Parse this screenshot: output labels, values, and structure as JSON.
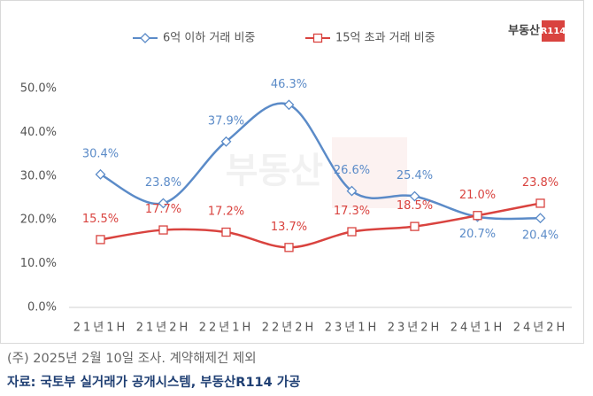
{
  "chart_data": {
    "type": "line",
    "logo": {
      "text": "부동산",
      "badge": "R114"
    },
    "categories": [
      "21년1H",
      "21년2H",
      "22년1H",
      "22년2H",
      "23년1H",
      "23년2H",
      "24년1H",
      "24년2H"
    ],
    "series": [
      {
        "name": "6억 이하 거래 비중",
        "color": "#5b8bc8",
        "marker": "diamond",
        "values": [
          30.4,
          23.8,
          37.9,
          46.3,
          26.6,
          25.4,
          20.7,
          20.4
        ],
        "value_labels": [
          "30.4%",
          "23.8%",
          "37.9%",
          "46.3%",
          "26.6%",
          "25.4%",
          "20.7%",
          "20.4%"
        ]
      },
      {
        "name": "15억 초과 거래 비중",
        "color": "#d9433f",
        "marker": "square",
        "values": [
          15.5,
          17.7,
          17.2,
          13.7,
          17.3,
          18.5,
          21.0,
          23.8
        ],
        "value_labels": [
          "15.5%",
          "17.7%",
          "17.2%",
          "13.7%",
          "17.3%",
          "18.5%",
          "21.0%",
          "23.8%"
        ]
      }
    ],
    "ylim": [
      0,
      50
    ],
    "yticks": [
      {
        "value": 0,
        "label": "0.0%"
      },
      {
        "value": 10,
        "label": "10.0%"
      },
      {
        "value": 20,
        "label": "20.0%"
      },
      {
        "value": 30,
        "label": "30.0%"
      },
      {
        "value": 40,
        "label": "40.0%"
      },
      {
        "value": 50,
        "label": "50.0%"
      }
    ],
    "grid": false,
    "legend": "top",
    "notes": [
      "(주) 2025년 2월 10일 조사. 계약해제건 제외",
      "자료: 국토부 실거래가 공개시스템, 부동산R114 가공"
    ]
  }
}
